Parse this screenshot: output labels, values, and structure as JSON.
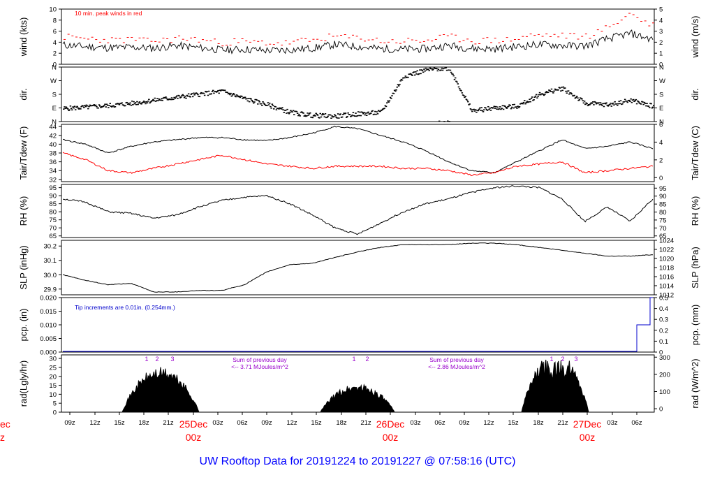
{
  "title": "UW Rooftop Data for 20191224  to  20191227 @ 07:58:16  (UTC)",
  "colors": {
    "black": "#000000",
    "red": "#ff0000",
    "blue": "#0000cc",
    "purple": "#9900cc",
    "title": "#0000ff"
  },
  "time_axis": {
    "tick_labels": [
      "09z",
      "12z",
      "15z",
      "18z",
      "21z",
      "03z",
      "06z",
      "09z",
      "12z",
      "15z",
      "18z",
      "21z",
      "03z",
      "06z",
      "09z",
      "12z",
      "15z",
      "18z",
      "21z",
      "03z",
      "06z"
    ],
    "day_labels": [
      {
        "day": "25Dec",
        "hour": "00z"
      },
      {
        "day": "26Dec",
        "hour": "00z"
      },
      {
        "day": "27Dec",
        "hour": "00z"
      }
    ],
    "cut_day": "ec",
    "cut_hour": "z"
  },
  "chart_data": [
    {
      "type": "line",
      "id": "wind",
      "ylabel": "wind (kts)",
      "ylabel_right": "wind (m/s)",
      "yticks": [
        "0",
        "2",
        "4",
        "6",
        "8",
        "10"
      ],
      "yticks_right": [
        "0",
        "1",
        "2",
        "3",
        "4",
        "5"
      ],
      "ylim": [
        0,
        10
      ],
      "annotation": "10 min. peak winds in red",
      "series": [
        {
          "values": [
            3.5,
            3.2,
            3.0,
            3.1,
            2.9,
            3.4,
            3.0,
            2.6,
            2.7,
            2.5,
            2.6,
            2.9,
            3.6,
            3.2,
            2.8,
            2.7,
            2.8,
            3.4,
            2.9,
            2.8,
            3.2,
            3.6,
            3.4,
            3.3,
            4.6,
            5.6,
            4.5
          ]
        },
        {
          "values": [
            4.8,
            4.5,
            4.2,
            4.4,
            4.0,
            4.6,
            4.3,
            3.8,
            3.9,
            3.7,
            3.8,
            4.2,
            5.0,
            4.5,
            4.1,
            4.0,
            4.2,
            4.8,
            4.2,
            4.1,
            4.6,
            5.2,
            5.1,
            4.9,
            6.5,
            9.0,
            6.8
          ]
        }
      ]
    },
    {
      "type": "scatter",
      "id": "dir",
      "ylabel": "dir.",
      "ylabel_right": "dir.",
      "yticks": [
        "N",
        "E",
        "S",
        "W",
        "N"
      ],
      "yticks_right": [
        "N",
        "E",
        "S",
        "W",
        "N"
      ],
      "ylim": [
        0,
        360
      ],
      "series": [
        {
          "values": [
            85,
            95,
            105,
            120,
            140,
            160,
            180,
            200,
            150,
            110,
            60,
            40,
            35,
            50,
            60,
            300,
            340,
            355,
            70,
            90,
            100,
            180,
            220,
            120,
            110,
            140,
            100
          ]
        }
      ]
    },
    {
      "type": "line",
      "id": "temp",
      "ylabel": "Tair/Tdew (F)",
      "ylabel_right": "Tair/Tdew (C)",
      "yticks": [
        "32",
        "34",
        "36",
        "38",
        "40",
        "42",
        "44"
      ],
      "yticks_right": [
        "0",
        "2",
        "4",
        "6"
      ],
      "ylim": [
        31.5,
        44.5
      ],
      "series": [
        {
          "values": [
            41.0,
            40.0,
            38.0,
            39.5,
            40.5,
            41.0,
            41.5,
            41.5,
            41.0,
            40.8,
            41.5,
            42.5,
            44.0,
            43.5,
            42.0,
            40.5,
            38.5,
            36.0,
            34.0,
            33.5,
            36.0,
            38.5,
            41.0,
            39.0,
            39.5,
            40.5,
            39.0
          ]
        },
        {
          "values": [
            38.0,
            36.5,
            34.0,
            33.5,
            34.5,
            35.5,
            36.5,
            37.5,
            36.5,
            35.5,
            35.0,
            34.5,
            35.0,
            35.0,
            35.0,
            34.5,
            34.5,
            34.0,
            33.0,
            33.5,
            35.0,
            35.5,
            36.0,
            33.5,
            34.0,
            34.5,
            35.0
          ]
        }
      ]
    },
    {
      "type": "line",
      "id": "rh",
      "ylabel": "RH (%)",
      "ylabel_right": "RH (%)",
      "yticks": [
        "65",
        "70",
        "75",
        "80",
        "85",
        "90",
        "95"
      ],
      "yticks_right": [
        "65",
        "70",
        "75",
        "80",
        "85",
        "90",
        "95"
      ],
      "ylim": [
        64,
        97
      ],
      "series": [
        {
          "values": [
            88,
            86,
            80,
            79,
            76,
            78,
            83,
            87,
            89,
            90,
            85,
            78,
            70,
            66,
            73,
            80,
            85,
            88,
            92,
            95,
            96,
            95,
            88,
            74,
            83,
            74,
            88
          ]
        }
      ]
    },
    {
      "type": "line",
      "id": "slp",
      "ylabel": "SLP (inHg)",
      "ylabel_right": "SLP (hPa)",
      "yticks": [
        "29.9",
        "30.0",
        "30.1",
        "30.2"
      ],
      "yticks_right": [
        "1012",
        "1014",
        "1016",
        "1018",
        "1020",
        "1022",
        "1024"
      ],
      "ylim": [
        29.86,
        30.24
      ],
      "series": [
        {
          "values": [
            30.0,
            29.96,
            29.93,
            29.94,
            29.88,
            29.88,
            29.89,
            29.89,
            29.93,
            30.02,
            30.07,
            30.08,
            30.12,
            30.16,
            30.19,
            30.21,
            30.21,
            30.21,
            30.22,
            30.22,
            30.21,
            30.19,
            30.17,
            30.15,
            30.13,
            30.13,
            30.14
          ]
        }
      ]
    },
    {
      "type": "line",
      "id": "pcp",
      "ylabel": "pcp. (in)",
      "ylabel_right": "pcp. (mm)",
      "yticks": [
        "0.000",
        "0.005",
        "0.010",
        "0.015",
        "0.020"
      ],
      "yticks_right": [
        "0",
        "0.1",
        "0.2",
        "0.3",
        "0.4",
        "0.5"
      ],
      "ylim": [
        0,
        0.02
      ],
      "annotation": "Tip increments are 0.01in. (0.254mm.)",
      "series": [
        {
          "values": [
            0,
            0,
            0,
            0,
            0,
            0,
            0,
            0,
            0,
            0,
            0,
            0,
            0,
            0,
            0,
            0,
            0,
            0,
            0,
            0,
            0,
            0,
            0,
            0,
            0,
            0.01,
            0.02
          ]
        }
      ]
    },
    {
      "type": "area",
      "id": "rad",
      "ylabel": "rad(Lgly/hr)",
      "ylabel_right": "rad (W/m^2)",
      "yticks": [
        "0",
        "5",
        "10",
        "15",
        "20",
        "25",
        "30"
      ],
      "yticks_right": [
        "0",
        "100",
        "200",
        "300"
      ],
      "ylim": [
        0,
        32
      ],
      "series": [
        {
          "values": [
            0,
            0,
            0,
            3,
            18,
            22,
            20,
            12,
            5,
            0,
            0,
            0,
            0,
            0,
            0,
            0,
            0,
            0,
            0,
            0,
            0,
            0,
            0,
            0,
            0,
            0,
            0
          ]
        }
      ],
      "day_peaks": [
        {
          "height": 22,
          "markers": [
            "1",
            "2",
            "3"
          ],
          "sum_line1": "Sum of previous day",
          "sum_line2": "<-- 3.71 MJoules/m^2"
        },
        {
          "height": 14,
          "markers": [
            "1",
            "2"
          ],
          "sum_line1": "Sum of previous day",
          "sum_line2": "<-- 2.86 MJoules/m^2"
        },
        {
          "height": 30,
          "markers": [
            "1",
            "2",
            "3"
          ]
        }
      ]
    }
  ]
}
